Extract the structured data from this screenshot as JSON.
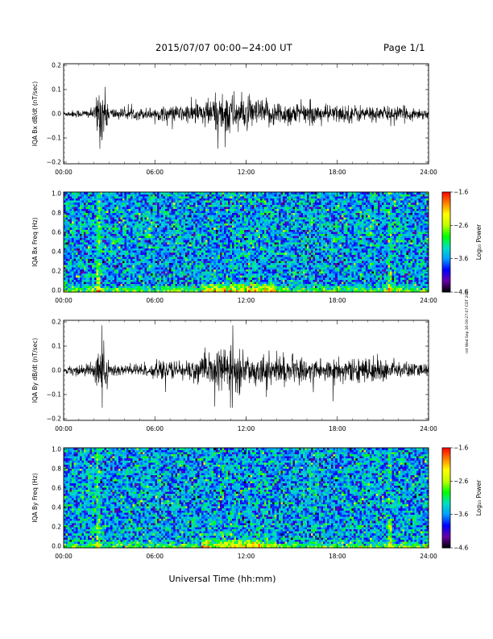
{
  "header": {
    "title": "2015/07/07  00:00−24:00 UT",
    "page": "Page 1/1"
  },
  "stamp": "rnt Wed Sep 16 09:27:07 CDT 2015",
  "colors": {
    "waveform": "#000000",
    "colormap": [
      "#000000",
      "#6a00a8",
      "#0000ff",
      "#00a0ff",
      "#00e0c0",
      "#00ff00",
      "#c0ff00",
      "#ffff00",
      "#ff8000",
      "#ff0000"
    ]
  },
  "chart_data": [
    {
      "type": "line",
      "ylabel": "IQA Bx dB/dt (nT/sec)",
      "xlim": [
        "00:00",
        "24:00"
      ],
      "ylim": [
        -0.2,
        0.2
      ],
      "yticks": [
        "0.2",
        "0.1",
        "0.0",
        "−0.1",
        "−0.2"
      ],
      "xticks": [
        "00:00",
        "06:00",
        "12:00",
        "18:00",
        "24:00"
      ],
      "x_hours": [
        0,
        1,
        2,
        2.3,
        2.5,
        2.7,
        3,
        4,
        5,
        6,
        7,
        8,
        9,
        10,
        10.8,
        11,
        12,
        13,
        14,
        15,
        16,
        17,
        18,
        19,
        20,
        21,
        22,
        23,
        24
      ],
      "envelope": [
        0.012,
        0.015,
        0.02,
        0.11,
        0.13,
        0.09,
        0.025,
        0.02,
        0.022,
        0.025,
        0.03,
        0.035,
        0.05,
        0.07,
        0.1,
        0.08,
        0.06,
        0.055,
        0.05,
        0.045,
        0.04,
        0.035,
        0.035,
        0.035,
        0.03,
        0.03,
        0.028,
        0.025,
        0.02
      ],
      "min": -0.14,
      "max": 0.12
    },
    {
      "type": "heatmap",
      "ylabel": "IQA Bx Freq (Hz)",
      "xlim": [
        "00:00",
        "24:00"
      ],
      "ylim": [
        0.0,
        1.0
      ],
      "yticks": [
        "1.0",
        "0.8",
        "0.6",
        "0.4",
        "0.2",
        "0.0"
      ],
      "xticks": [
        "00:00",
        "06:00",
        "12:00",
        "18:00",
        "24:00"
      ],
      "colorbar_label": "Log₁₀ Power",
      "colorbar_ticks": [
        "−1.6",
        "−2.6",
        "−3.6",
        "−4.6"
      ],
      "zlim": [
        -4.6,
        -1.6
      ],
      "hot_hours": [
        2.3,
        21.5
      ],
      "low_freq_enhancement_hours": [
        9,
        14
      ]
    },
    {
      "type": "line",
      "ylabel": "IQA By dB/dt (nT/sec)",
      "xlim": [
        "00:00",
        "24:00"
      ],
      "ylim": [
        -0.2,
        0.2
      ],
      "yticks": [
        "0.2",
        "0.1",
        "0.0",
        "−0.1",
        "−0.2"
      ],
      "xticks": [
        "00:00",
        "06:00",
        "12:00",
        "18:00",
        "24:00"
      ],
      "x_hours": [
        0,
        1,
        2,
        2.3,
        2.5,
        2.7,
        3,
        4,
        5,
        6,
        7,
        8,
        9,
        10,
        10.8,
        11,
        12,
        13,
        14,
        15,
        16,
        17,
        18,
        19,
        20,
        21,
        22,
        23,
        24
      ],
      "envelope": [
        0.015,
        0.02,
        0.03,
        0.15,
        0.12,
        0.1,
        0.03,
        0.025,
        0.028,
        0.03,
        0.035,
        0.04,
        0.05,
        0.07,
        0.1,
        0.09,
        0.06,
        0.055,
        0.06,
        0.05,
        0.045,
        0.05,
        0.045,
        0.04,
        0.05,
        0.045,
        0.035,
        0.03,
        0.025
      ],
      "min": -0.15,
      "max": 0.18
    },
    {
      "type": "heatmap",
      "ylabel": "IQA By Freq (Hz)",
      "xlim": [
        "00:00",
        "24:00"
      ],
      "ylim": [
        0.0,
        1.0
      ],
      "yticks": [
        "1.0",
        "0.8",
        "0.6",
        "0.4",
        "0.2",
        "0.0"
      ],
      "xticks": [
        "00:00",
        "06:00",
        "12:00",
        "18:00",
        "24:00"
      ],
      "colorbar_label": "Log₁₀ Power",
      "colorbar_ticks": [
        "−1.6",
        "−2.6",
        "−3.6",
        "−4.6"
      ],
      "zlim": [
        -4.6,
        -1.6
      ],
      "hot_hours": [
        2.3,
        21.5
      ],
      "low_freq_enhancement_hours": [
        9,
        14
      ]
    }
  ],
  "xaxis_title": "Universal Time (hh:mm)"
}
